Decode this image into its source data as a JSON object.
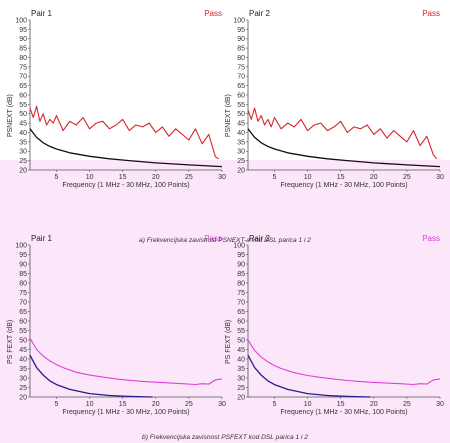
{
  "colors": {
    "top_background": "#ffffff",
    "bottom_background": "#fbe6fa",
    "red_trace": "#d4252a",
    "black_trace": "#111111",
    "navy_trace": "#2a1b8a",
    "magenta_trace": "#e040d8",
    "pass_red": "#e02020",
    "pass_magenta": "#e040d8"
  },
  "captions": {
    "top": "a) Frekvencijska zavisnost PSNEXT-a kod DSL parica 1 i 2",
    "bottom": "b) Frekvencijska zavisnost PSFEXT kod DSL parica 1 i 2"
  },
  "chart_data": [
    {
      "type": "line",
      "title": "Pair 1",
      "status": "Pass",
      "xlabel": "Frequency (1 MHz - 30 MHz, 100 Points)",
      "ylabel": "PSNEXT (dB)",
      "xlim": [
        1,
        30
      ],
      "ylim": [
        20,
        100
      ],
      "xticks": [
        5,
        10,
        15,
        20,
        25,
        30
      ],
      "yticks": [
        20,
        25,
        30,
        35,
        40,
        45,
        50,
        55,
        60,
        65,
        70,
        75,
        80,
        85,
        90,
        95,
        100
      ],
      "grid": false,
      "series": [
        {
          "role": "measured",
          "x": [
            1,
            1.5,
            2,
            2.5,
            3,
            3.5,
            4,
            4.5,
            5,
            6,
            7,
            8,
            9,
            10,
            11,
            12,
            13,
            14,
            15,
            16,
            17,
            18,
            19,
            20,
            21,
            22,
            23,
            24,
            25,
            26,
            27,
            28,
            29,
            29.5
          ],
          "y": [
            53,
            48,
            54,
            46,
            50,
            44,
            47,
            45,
            49,
            41,
            46,
            44,
            48,
            42,
            45,
            46,
            42,
            44,
            47,
            41,
            44,
            43,
            45,
            40,
            43,
            38,
            42,
            39,
            36,
            42,
            34,
            39,
            27,
            26
          ]
        },
        {
          "role": "limit",
          "x": [
            1,
            2,
            3,
            4,
            5,
            7,
            10,
            13,
            16,
            20,
            25,
            30
          ],
          "y": [
            42,
            37.4,
            34.5,
            32.6,
            31.2,
            29.2,
            27.3,
            26,
            25,
            23.8,
            22.7,
            21.8
          ]
        }
      ]
    },
    {
      "type": "line",
      "title": "Pair 2",
      "status": "Pass",
      "xlabel": "Frequency (1 MHz - 30 MHz, 100 Points)",
      "ylabel": "PSNEXT (dB)",
      "xlim": [
        1,
        30
      ],
      "ylim": [
        20,
        100
      ],
      "xticks": [
        5,
        10,
        15,
        20,
        25,
        30
      ],
      "yticks": [
        20,
        25,
        30,
        35,
        40,
        45,
        50,
        55,
        60,
        65,
        70,
        75,
        80,
        85,
        90,
        95,
        100
      ],
      "grid": false,
      "series": [
        {
          "role": "measured",
          "x": [
            1,
            1.5,
            2,
            2.5,
            3,
            3.5,
            4,
            4.5,
            5,
            6,
            7,
            8,
            9,
            10,
            11,
            12,
            13,
            14,
            15,
            16,
            17,
            18,
            19,
            20,
            21,
            22,
            23,
            24,
            25,
            26,
            27,
            28,
            29,
            29.5
          ],
          "y": [
            52,
            47,
            53,
            46,
            49,
            44,
            47,
            43,
            48,
            42,
            45,
            43,
            47,
            41,
            44,
            45,
            41,
            43,
            46,
            40,
            43,
            42,
            44,
            39,
            42,
            37,
            41,
            38,
            35,
            41,
            33,
            38,
            28,
            26
          ]
        },
        {
          "role": "limit",
          "x": [
            1,
            2,
            3,
            4,
            5,
            7,
            10,
            13,
            16,
            20,
            25,
            30
          ],
          "y": [
            42,
            37.4,
            34.5,
            32.6,
            31.2,
            29.2,
            27.3,
            26,
            25,
            23.8,
            22.7,
            21.8
          ]
        }
      ]
    },
    {
      "type": "line",
      "title": "Pair 1",
      "status": "Pass",
      "xlabel": "Frequency (1 MHz - 30 MHz, 100 Points)",
      "ylabel": "PS FEXT (dB)",
      "xlim": [
        1,
        30
      ],
      "ylim": [
        20,
        100
      ],
      "xticks": [
        5,
        10,
        15,
        20,
        25,
        30
      ],
      "yticks": [
        20,
        25,
        30,
        35,
        40,
        45,
        50,
        55,
        60,
        65,
        70,
        75,
        80,
        85,
        90,
        95,
        100
      ],
      "grid": false,
      "series": [
        {
          "role": "measured",
          "x": [
            1,
            2,
            3,
            4,
            5,
            6,
            8,
            10,
            12,
            14,
            16,
            18,
            20,
            22,
            24,
            26,
            27,
            28,
            29,
            30
          ],
          "y": [
            51,
            45,
            41.5,
            39,
            37,
            35.5,
            33,
            31.5,
            30.5,
            29.5,
            28.8,
            28.2,
            27.8,
            27.4,
            27,
            26.6,
            27,
            26.8,
            29,
            29.5
          ]
        },
        {
          "role": "limit",
          "x": [
            1,
            2,
            3,
            4,
            5,
            7,
            10,
            13,
            16,
            19.5
          ],
          "y": [
            42,
            35.5,
            31.5,
            28.5,
            26.5,
            24,
            21.8,
            20.8,
            20.3,
            20
          ]
        }
      ]
    },
    {
      "type": "line",
      "title": "Pair 2",
      "status": "Pass",
      "xlabel": "Frequency (1 MHz - 30 MHz, 100 Points)",
      "ylabel": "PS FEXT (dB)",
      "xlim": [
        1,
        30
      ],
      "ylim": [
        20,
        100
      ],
      "xticks": [
        5,
        10,
        15,
        20,
        25,
        30
      ],
      "yticks": [
        20,
        25,
        30,
        35,
        40,
        45,
        50,
        55,
        60,
        65,
        70,
        75,
        80,
        85,
        90,
        95,
        100
      ],
      "grid": false,
      "series": [
        {
          "role": "measured",
          "x": [
            1,
            2,
            3,
            4,
            5,
            6,
            8,
            10,
            12,
            14,
            16,
            18,
            20,
            22,
            24,
            26,
            27,
            28,
            29,
            30
          ],
          "y": [
            50,
            44.5,
            41,
            38.5,
            36.5,
            35,
            32.8,
            31.3,
            30.3,
            29.4,
            28.7,
            28.1,
            27.7,
            27.3,
            27,
            26.6,
            27,
            26.8,
            29,
            29.5
          ]
        },
        {
          "role": "limit",
          "x": [
            1,
            2,
            3,
            4,
            5,
            7,
            10,
            13,
            16,
            19.5
          ],
          "y": [
            42,
            35.5,
            31.5,
            28.5,
            26.5,
            24,
            21.8,
            20.8,
            20.3,
            20
          ]
        }
      ]
    }
  ]
}
